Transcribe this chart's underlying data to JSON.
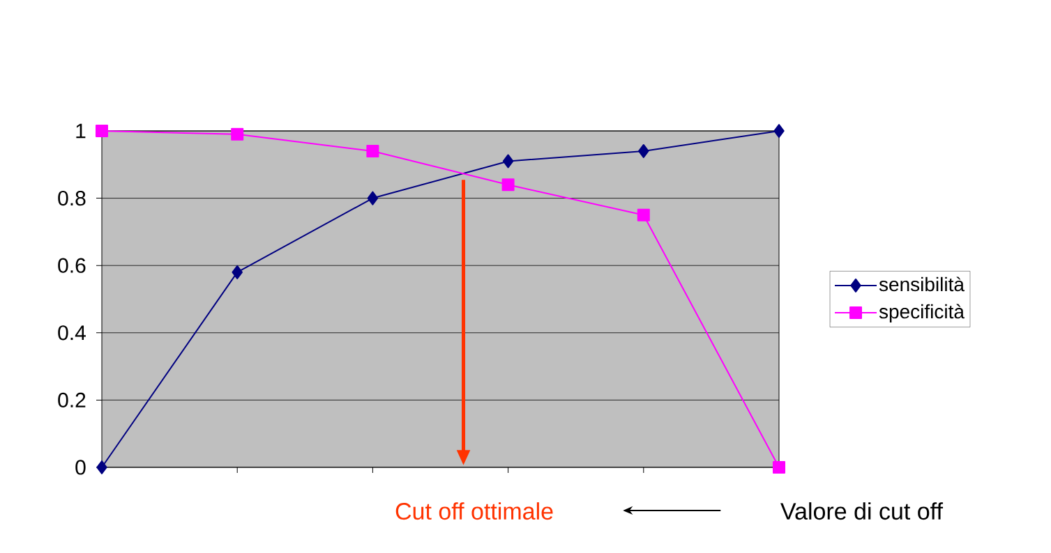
{
  "chart_data": {
    "type": "line",
    "xlabel": "Valore di cut off",
    "categories": [
      null,
      null,
      null,
      null,
      null,
      null
    ],
    "ylim": [
      0,
      1
    ],
    "yticks": [
      {
        "value": 0,
        "label": "0"
      },
      {
        "value": 0.2,
        "label": "0.2"
      },
      {
        "value": 0.4,
        "label": "0.4"
      },
      {
        "value": 0.6,
        "label": "0.6"
      },
      {
        "value": 0.8,
        "label": "0.8"
      },
      {
        "value": 1,
        "label": "1"
      }
    ],
    "series": [
      {
        "name": "sensibilità",
        "color": "#000080",
        "marker": "diamond",
        "values": [
          0,
          0.58,
          0.8,
          0.91,
          0.94,
          1
        ]
      },
      {
        "name": "specificità",
        "color": "#ff00ff",
        "marker": "square",
        "values": [
          1,
          0.99,
          0.94,
          0.84,
          0.75,
          0
        ]
      }
    ],
    "annotations": [
      "Cut off ottimale"
    ],
    "grid": "y",
    "legend": "right"
  }
}
